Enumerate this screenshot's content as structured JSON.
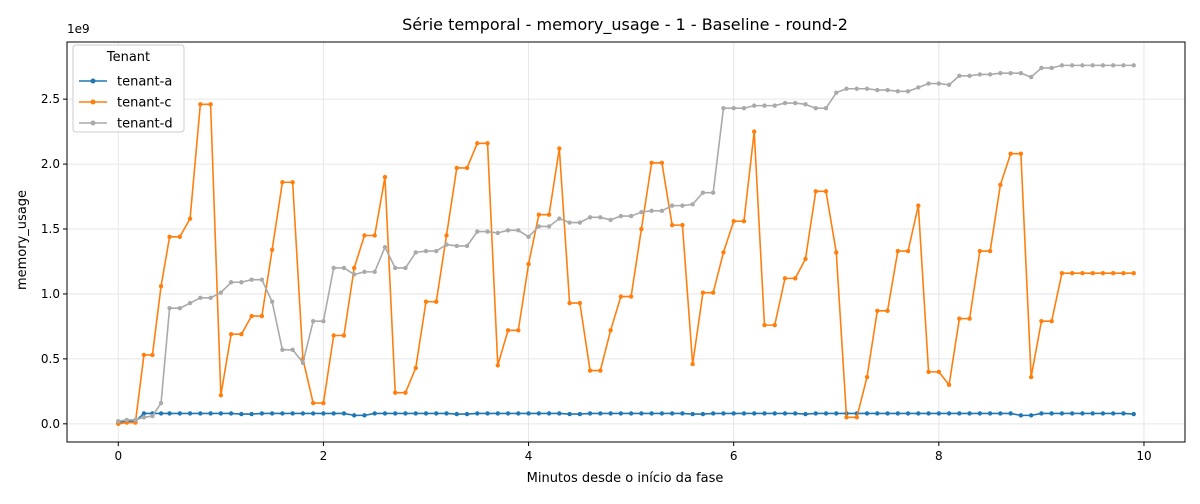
{
  "chart_data": {
    "type": "line",
    "title": "Série temporal - memory_usage - 1 - Baseline - round-2",
    "xlabel": "Minutos desde o início da fase",
    "ylabel": "memory_usage",
    "y_scale_label": "1e9",
    "y_multiplier": 1000000000,
    "xlim": [
      -0.5,
      10.4
    ],
    "ylim": [
      -0.14,
      2.94
    ],
    "x_ticks": [
      0,
      2,
      4,
      6,
      8,
      10
    ],
    "x_tick_labels": [
      "0",
      "2",
      "4",
      "6",
      "8",
      "10"
    ],
    "y_ticks": [
      0.0,
      0.5,
      1.0,
      1.5,
      2.0,
      2.5
    ],
    "y_tick_labels": [
      "0.0",
      "0.5",
      "1.0",
      "1.5",
      "2.0",
      "2.5"
    ],
    "grid": true,
    "legend": {
      "title": "Tenant",
      "placement": "top-left"
    },
    "x": [
      0.0,
      0.083,
      0.167,
      0.25,
      0.333,
      0.417,
      0.5,
      0.6,
      0.7,
      0.8,
      0.9,
      1.0,
      1.1,
      1.2,
      1.3,
      1.4,
      1.5,
      1.6,
      1.7,
      1.8,
      1.9,
      2.0,
      2.1,
      2.2,
      2.3,
      2.4,
      2.5,
      2.6,
      2.7,
      2.8,
      2.9,
      3.0,
      3.1,
      3.2,
      3.3,
      3.4,
      3.5,
      3.6,
      3.7,
      3.8,
      3.9,
      4.0,
      4.1,
      4.2,
      4.3,
      4.4,
      4.5,
      4.6,
      4.7,
      4.8,
      4.9,
      5.0,
      5.1,
      5.2,
      5.3,
      5.4,
      5.5,
      5.6,
      5.7,
      5.8,
      5.9,
      6.0,
      6.1,
      6.2,
      6.3,
      6.4,
      6.5,
      6.6,
      6.7,
      6.8,
      6.9,
      7.0,
      7.1,
      7.2,
      7.3,
      7.4,
      7.5,
      7.6,
      7.7,
      7.8,
      7.9,
      8.0,
      8.1,
      8.2,
      8.3,
      8.4,
      8.5,
      8.6,
      8.7,
      8.8,
      8.9,
      9.0,
      9.1,
      9.2,
      9.3,
      9.4,
      9.5,
      9.6,
      9.7,
      9.8,
      9.9
    ],
    "series": [
      {
        "name": "tenant-a",
        "color": "#1f77b4",
        "values": [
          0.01,
          0.02,
          0.02,
          0.08,
          0.08,
          0.08,
          0.08,
          0.08,
          0.08,
          0.08,
          0.08,
          0.08,
          0.08,
          0.075,
          0.075,
          0.08,
          0.08,
          0.08,
          0.08,
          0.08,
          0.08,
          0.08,
          0.08,
          0.08,
          0.065,
          0.065,
          0.08,
          0.08,
          0.08,
          0.08,
          0.08,
          0.08,
          0.08,
          0.08,
          0.075,
          0.075,
          0.08,
          0.08,
          0.08,
          0.08,
          0.08,
          0.08,
          0.08,
          0.08,
          0.08,
          0.075,
          0.075,
          0.08,
          0.08,
          0.08,
          0.08,
          0.08,
          0.08,
          0.08,
          0.08,
          0.08,
          0.08,
          0.075,
          0.075,
          0.08,
          0.08,
          0.08,
          0.08,
          0.08,
          0.08,
          0.08,
          0.08,
          0.08,
          0.075,
          0.08,
          0.08,
          0.08,
          0.08,
          0.08,
          0.08,
          0.08,
          0.08,
          0.08,
          0.08,
          0.08,
          0.08,
          0.08,
          0.08,
          0.08,
          0.08,
          0.08,
          0.08,
          0.08,
          0.08,
          0.065,
          0.065,
          0.08,
          0.08,
          0.08,
          0.08,
          0.08,
          0.08,
          0.08,
          0.08,
          0.08,
          0.075
        ]
      },
      {
        "name": "tenant-c",
        "color": "#ff7f0e",
        "values": [
          0.0,
          0.01,
          0.01,
          0.53,
          0.53,
          1.06,
          1.44,
          1.44,
          1.58,
          2.46,
          2.46,
          0.22,
          0.69,
          0.69,
          0.83,
          0.83,
          1.34,
          1.86,
          1.86,
          0.5,
          0.16,
          0.16,
          0.68,
          0.68,
          1.2,
          1.45,
          1.45,
          1.9,
          0.24,
          0.24,
          0.43,
          0.94,
          0.94,
          1.45,
          1.97,
          1.97,
          2.16,
          2.16,
          0.45,
          0.72,
          0.72,
          1.23,
          1.61,
          1.61,
          2.12,
          0.93,
          0.93,
          0.41,
          0.41,
          0.72,
          0.98,
          0.98,
          1.5,
          2.01,
          2.01,
          1.53,
          1.53,
          0.46,
          1.01,
          1.01,
          1.32,
          1.56,
          1.56,
          2.25,
          0.76,
          0.76,
          1.12,
          1.12,
          1.27,
          1.79,
          1.79,
          1.32,
          0.05,
          0.05,
          0.36,
          0.87,
          0.87,
          1.33,
          1.33,
          1.68,
          0.4,
          0.4,
          0.3,
          0.81,
          0.81,
          1.33,
          1.33,
          1.84,
          2.08,
          2.08,
          0.36,
          0.79,
          0.79,
          1.16,
          1.16,
          1.16,
          1.16,
          1.16,
          1.16,
          1.16,
          1.16
        ]
      },
      {
        "name": "tenant-d",
        "color": "#aaaaaa",
        "values": [
          0.02,
          0.03,
          0.03,
          0.05,
          0.06,
          0.16,
          0.89,
          0.89,
          0.93,
          0.97,
          0.97,
          1.01,
          1.09,
          1.09,
          1.11,
          1.11,
          0.94,
          0.57,
          0.57,
          0.47,
          0.79,
          0.79,
          1.2,
          1.2,
          1.15,
          1.17,
          1.17,
          1.36,
          1.2,
          1.2,
          1.32,
          1.33,
          1.33,
          1.38,
          1.37,
          1.37,
          1.48,
          1.48,
          1.47,
          1.49,
          1.49,
          1.44,
          1.52,
          1.52,
          1.58,
          1.55,
          1.55,
          1.59,
          1.59,
          1.57,
          1.6,
          1.6,
          1.63,
          1.64,
          1.64,
          1.68,
          1.68,
          1.69,
          1.78,
          1.78,
          2.43,
          2.43,
          2.43,
          2.45,
          2.45,
          2.45,
          2.47,
          2.47,
          2.46,
          2.43,
          2.43,
          2.55,
          2.58,
          2.58,
          2.58,
          2.57,
          2.57,
          2.56,
          2.56,
          2.59,
          2.62,
          2.62,
          2.61,
          2.68,
          2.68,
          2.69,
          2.69,
          2.7,
          2.7,
          2.7,
          2.67,
          2.74,
          2.74,
          2.76,
          2.76,
          2.76,
          2.76,
          2.76,
          2.76,
          2.76,
          2.76
        ]
      }
    ]
  }
}
